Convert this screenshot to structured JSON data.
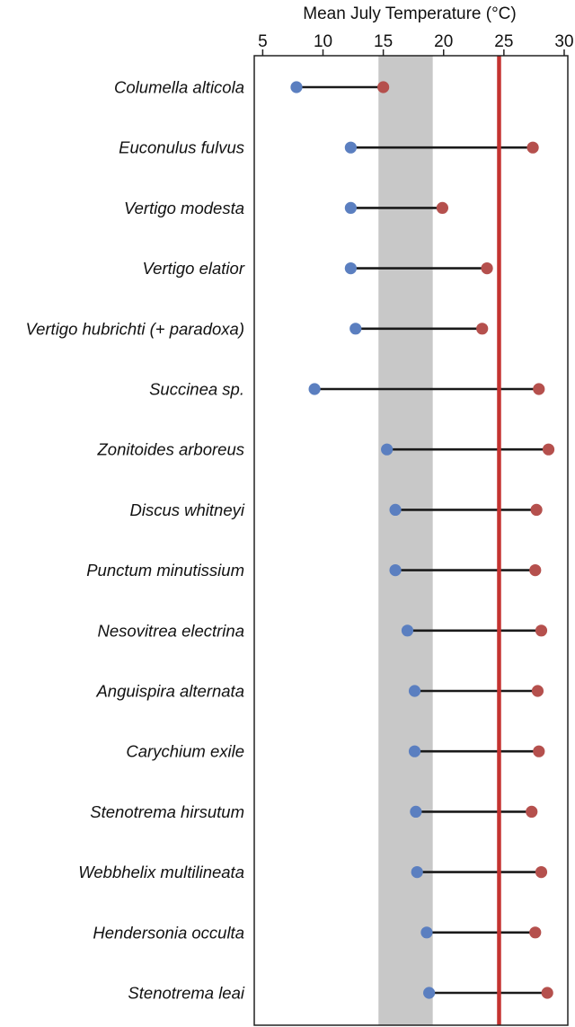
{
  "chart_data": {
    "type": "range-dot",
    "xlabel": "Mean July Temperature (°C)",
    "xlim": [
      4.3,
      30.3
    ],
    "xticks": [
      5,
      10,
      15,
      20,
      25,
      30
    ],
    "xtick_labels": [
      "5",
      "10",
      "15",
      "20",
      "25",
      "30"
    ],
    "shaded_band": [
      14.6,
      19.1
    ],
    "reference_line": 24.6,
    "colors": {
      "min_point": "#5b7fc0",
      "max_point": "#b5504d",
      "connector": "#1a1a1a",
      "band": "#c8c8c8",
      "reference_line": "#c43330",
      "frame": "#222222"
    },
    "species": [
      {
        "name": "Columella alticola",
        "min": 7.8,
        "max": 15.0
      },
      {
        "name": "Euconulus fulvus",
        "min": 12.3,
        "max": 27.4
      },
      {
        "name": "Vertigo modesta",
        "min": 12.3,
        "max": 19.9
      },
      {
        "name": "Vertigo elatior",
        "min": 12.3,
        "max": 23.6
      },
      {
        "name": "Vertigo hubrichti (+ paradoxa)",
        "min": 12.7,
        "max": 23.2
      },
      {
        "name": "Succinea sp.",
        "min": 9.3,
        "max": 27.9
      },
      {
        "name": "Zonitoides arboreus",
        "min": 15.3,
        "max": 28.7
      },
      {
        "name": "Discus whitneyi",
        "min": 16.0,
        "max": 27.7
      },
      {
        "name": "Punctum minutissium",
        "min": 16.0,
        "max": 27.6
      },
      {
        "name": "Nesovitrea electrina",
        "min": 17.0,
        "max": 28.1
      },
      {
        "name": "Anguispira alternata",
        "min": 17.6,
        "max": 27.8
      },
      {
        "name": "Carychium exile",
        "min": 17.6,
        "max": 27.9
      },
      {
        "name": "Stenotrema hirsutum",
        "min": 17.7,
        "max": 27.3
      },
      {
        "name": "Webbhelix multilineata",
        "min": 17.8,
        "max": 28.1
      },
      {
        "name": "Hendersonia occulta",
        "min": 18.6,
        "max": 27.6
      },
      {
        "name": "Stenotrema leai",
        "min": 18.8,
        "max": 28.6
      }
    ]
  }
}
